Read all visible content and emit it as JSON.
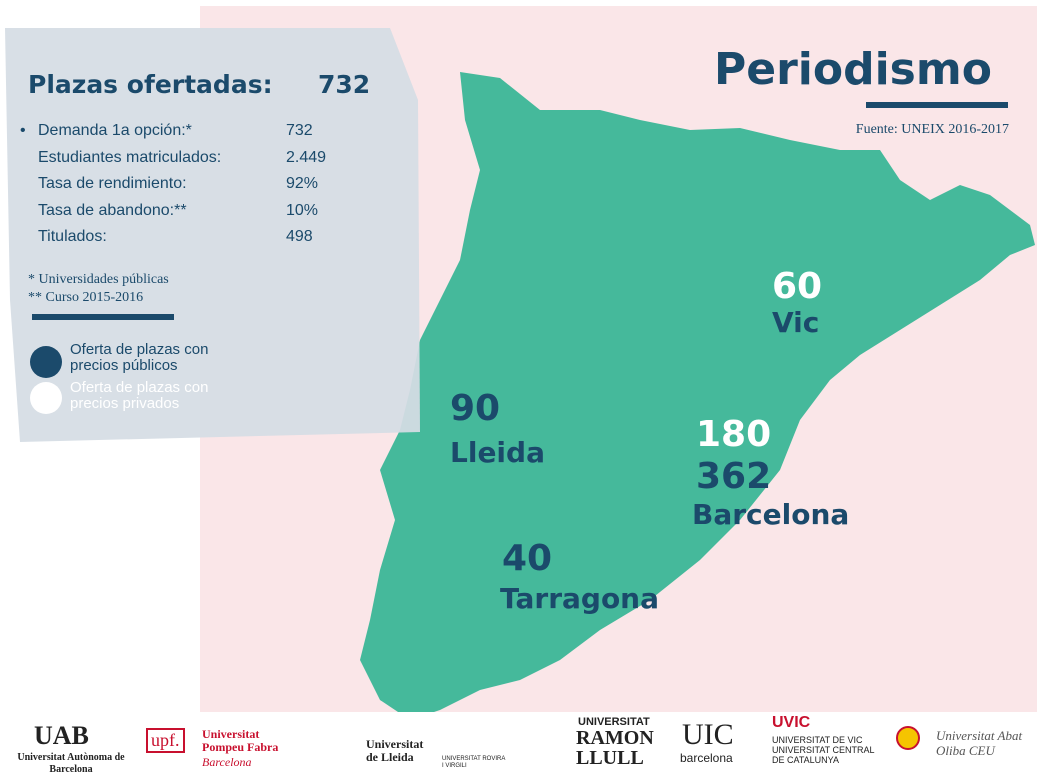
{
  "title": "Periodismo",
  "source": "Fuente: UNEIX 2016-2017",
  "panel": {
    "heading": "Plazas ofertadas:",
    "heading_value": "732",
    "stats": [
      {
        "label": "Demanda 1a opción:*",
        "value": "732"
      },
      {
        "label": "Estudiantes matriculados:",
        "value": "2.449"
      },
      {
        "label": "Tasa de rendimiento:",
        "value": "92%"
      },
      {
        "label": "Tasa de abandono:**",
        "value": "10%"
      },
      {
        "label": "Titulados:",
        "value": "498"
      }
    ],
    "notes": [
      "* Universidades públicas",
      "** Curso 2015-2016"
    ],
    "legend": [
      "Oferta de plazas con precios públicos",
      "Oferta de plazas con precios privados"
    ]
  },
  "regions": [
    {
      "private": "60",
      "name": "Vic"
    },
    {
      "public": "90",
      "name": "Lleida"
    },
    {
      "private": "180",
      "public": "362",
      "name": "Barcelona"
    },
    {
      "public": "40",
      "name": "Tarragona"
    }
  ],
  "logos": [
    "UAB",
    "Universitat Autònoma de Barcelona",
    "upf.",
    "Universitat Pompeu Fabra",
    "Barcelona",
    "Universitat de Lleida",
    "UNIVERSITAT ROVIRA I VIRGILI",
    "UNIVERSITAT",
    "RAMON LLULL",
    "UIC",
    "barcelona",
    "UVIC",
    "UNIVERSITAT DE VIC UNIVERSITAT CENTRAL DE CATALUNYA",
    "Universitat Abat Oliba CEU"
  ]
}
